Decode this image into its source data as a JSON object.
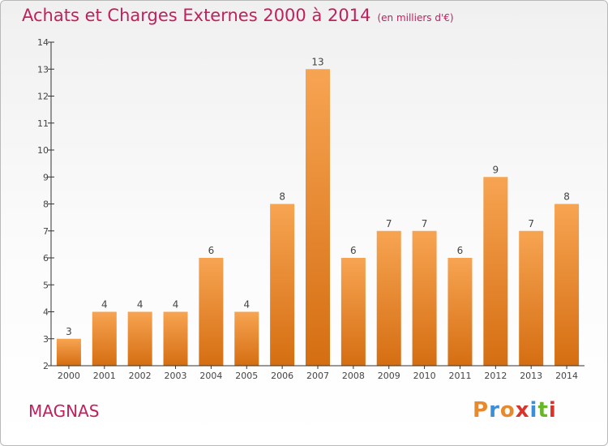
{
  "header": {
    "title": "Achats et Charges Externes 2000 à 2014",
    "unit": "(en milliers d'€)"
  },
  "footer": {
    "commune": "MAGNAS",
    "logo_text": "Proxiti"
  },
  "colors": {
    "title": "#c0205c",
    "bar_top": "#f7a452",
    "bar_bottom": "#d56e12",
    "axis": "#333333",
    "logo": [
      "#e8892b",
      "#3a8fd8",
      "#e8892b",
      "#d8342c",
      "#3a8fd8",
      "#6bb52a",
      "#d8342c"
    ]
  },
  "chart_data": {
    "type": "bar",
    "title": "Achats et Charges Externes 2000 à 2014",
    "xlabel": "",
    "ylabel": "",
    "categories": [
      "2000",
      "2001",
      "2002",
      "2003",
      "2004",
      "2005",
      "2006",
      "2007",
      "2008",
      "2009",
      "2010",
      "2011",
      "2012",
      "2013",
      "2014"
    ],
    "values": [
      3,
      4,
      4,
      4,
      6,
      4,
      8,
      13,
      6,
      7,
      7,
      6,
      9,
      7,
      8
    ],
    "yticks": [
      2,
      3,
      4,
      5,
      6,
      7,
      8,
      9,
      10,
      11,
      12,
      13,
      14
    ],
    "ylim": [
      2,
      14
    ],
    "grid": false,
    "legend": "none"
  }
}
